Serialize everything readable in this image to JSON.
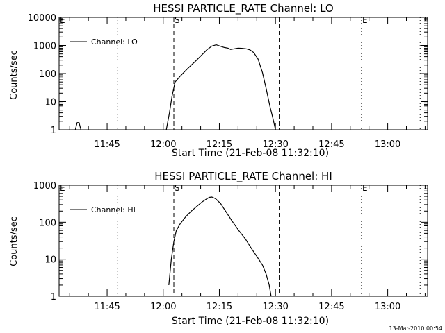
{
  "chart_data": [
    {
      "type": "line",
      "title": "HESSI PARTICLE_RATE Channel: LO",
      "xlabel": "Start Time (21-Feb-08 11:32:10)",
      "ylabel": "Counts/sec",
      "y_scale": "log",
      "ylim": [
        1,
        10000
      ],
      "y_ticks": [
        "1",
        "10",
        "100",
        "1000",
        "10000"
      ],
      "xlim": [
        "11:32:10",
        "13:10:40"
      ],
      "x_ticks": [
        "11:45",
        "12:00",
        "12:15",
        "12:30",
        "12:45",
        "13:00"
      ],
      "legend": {
        "placement": "top-left",
        "entries": [
          "Channel: LO"
        ]
      },
      "markers": {
        "E": [
          "11:32:10",
          "12:53:00"
        ],
        "S": [
          "12:02:50"
        ]
      },
      "dotted_lines": [
        "11:47:50",
        "12:53:00",
        "13:08:40"
      ],
      "dashed_lines": [
        "12:02:50",
        "12:31:00"
      ],
      "series": [
        {
          "name": "Channel: LO",
          "points": [
            [
              "11:36:30",
              1
            ],
            [
              "11:37:00",
              1.8
            ],
            [
              "11:37:30",
              1.8
            ],
            [
              "11:38:00",
              1
            ],
            [
              "12:00:50",
              1
            ],
            [
              "12:01:40",
              4
            ],
            [
              "12:02:20",
              15
            ],
            [
              "12:03:10",
              50
            ],
            [
              "12:04:30",
              80
            ],
            [
              "12:06:30",
              150
            ],
            [
              "12:08:40",
              280
            ],
            [
              "12:10:00",
              420
            ],
            [
              "12:11:40",
              700
            ],
            [
              "12:13:00",
              950
            ],
            [
              "12:14:10",
              1050
            ],
            [
              "12:15:10",
              950
            ],
            [
              "12:16:20",
              850
            ],
            [
              "12:17:20",
              800
            ],
            [
              "12:18:00",
              720
            ],
            [
              "12:19:00",
              760
            ],
            [
              "12:20:00",
              800
            ],
            [
              "12:21:00",
              790
            ],
            [
              "12:22:10",
              760
            ],
            [
              "12:23:10",
              700
            ],
            [
              "12:24:10",
              560
            ],
            [
              "12:25:20",
              330
            ],
            [
              "12:26:30",
              110
            ],
            [
              "12:27:30",
              30
            ],
            [
              "12:28:30",
              7
            ],
            [
              "12:29:20",
              2.5
            ],
            [
              "12:30:00",
              1
            ]
          ]
        }
      ]
    },
    {
      "type": "line",
      "title": "HESSI PARTICLE_RATE Channel: HI",
      "xlabel": "Start Time (21-Feb-08 11:32:10)",
      "ylabel": "Counts/sec",
      "y_scale": "log",
      "ylim": [
        1,
        1000
      ],
      "y_ticks": [
        "1",
        "10",
        "100",
        "1000"
      ],
      "xlim": [
        "11:32:10",
        "13:10:40"
      ],
      "x_ticks": [
        "11:45",
        "12:00",
        "12:15",
        "12:30",
        "12:45",
        "13:00"
      ],
      "legend": {
        "placement": "top-left",
        "entries": [
          "Channel: HI"
        ]
      },
      "markers": {
        "E": [
          "11:32:10",
          "12:53:00"
        ],
        "S": [
          "12:02:50"
        ]
      },
      "dotted_lines": [
        "11:47:50",
        "12:53:00",
        "13:08:40"
      ],
      "dashed_lines": [
        "12:02:50",
        "12:31:00"
      ],
      "series": [
        {
          "name": "Channel: HI",
          "points": [
            [
              "12:01:30",
              2
            ],
            [
              "12:02:10",
              10
            ],
            [
              "12:02:50",
              30
            ],
            [
              "12:03:30",
              60
            ],
            [
              "12:04:30",
              90
            ],
            [
              "12:06:00",
              140
            ],
            [
              "12:07:30",
              200
            ],
            [
              "12:09:00",
              270
            ],
            [
              "12:10:20",
              350
            ],
            [
              "12:11:30",
              420
            ],
            [
              "12:12:20",
              470
            ],
            [
              "12:13:00",
              480
            ],
            [
              "12:14:00",
              430
            ],
            [
              "12:15:20",
              320
            ],
            [
              "12:16:40",
              200
            ],
            [
              "12:18:20",
              110
            ],
            [
              "12:20:10",
              60
            ],
            [
              "12:22:00",
              35
            ],
            [
              "12:23:30",
              20
            ],
            [
              "12:25:00",
              12
            ],
            [
              "12:26:30",
              7
            ],
            [
              "12:27:30",
              4
            ],
            [
              "12:28:20",
              2
            ],
            [
              "12:28:50",
              1
            ]
          ]
        }
      ]
    }
  ],
  "footer_timestamp": "13-Mar-2010 00:54"
}
